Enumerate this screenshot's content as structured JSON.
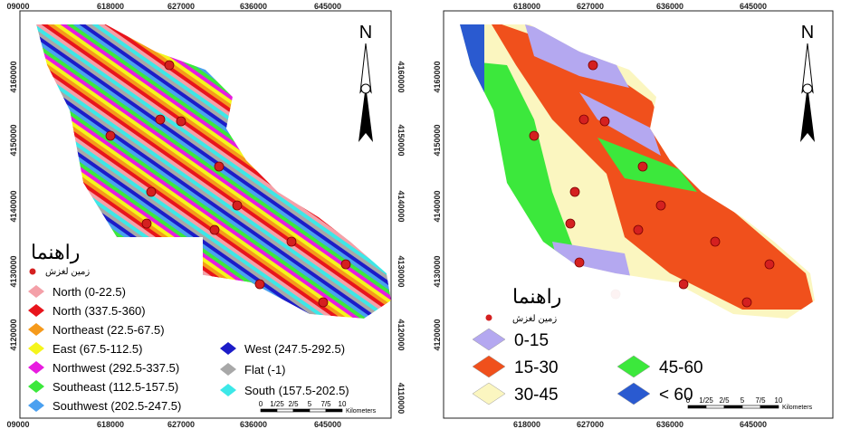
{
  "left_map": {
    "top_labels": [
      "09000",
      "618000",
      "627000",
      "636000",
      "645000"
    ],
    "left_labels": [
      "4160000",
      "4150000",
      "4140000",
      "4130000",
      "4120000"
    ],
    "right_labels": [
      "4160000",
      "4150000",
      "4140000",
      "4130000",
      "4120000",
      "4110000"
    ],
    "bottom_labels": [
      "09000",
      "618000",
      "627000",
      "636000",
      "645000"
    ],
    "north": "N",
    "legend": {
      "title": "راهنما",
      "point_label": "زمین لغزش",
      "point_color": "#d42020",
      "items": [
        {
          "label": "North (0-22.5)",
          "color": "#f4a0a8"
        },
        {
          "label": "North (337.5-360)",
          "color": "#e8141c"
        },
        {
          "label": "Northeast (22.5-67.5)",
          "color": "#f59a1c"
        },
        {
          "label": "East (67.5-112.5)",
          "color": "#f5f51c"
        },
        {
          "label": "Northwest (292.5-337.5)",
          "color": "#e81ce0"
        },
        {
          "label": "Southeast (112.5-157.5)",
          "color": "#3ce83c"
        },
        {
          "label": "Southwest (202.5-247.5)",
          "color": "#4aa0f0"
        },
        {
          "label": "West (247.5-292.5)",
          "color": "#1c1cc8"
        },
        {
          "label": "Flat (-1)",
          "color": "#a8a8a8"
        },
        {
          "label": "South (157.5-202.5)",
          "color": "#3ce8e8"
        }
      ]
    },
    "scale": {
      "ticks": [
        "0",
        "1/25",
        "2/5",
        "5",
        "7/5",
        "10"
      ],
      "unit": "Kilometers"
    }
  },
  "right_map": {
    "top_labels": [
      "618000",
      "627000",
      "636000",
      "645000"
    ],
    "left_labels": [
      "4160000",
      "4150000",
      "4140000",
      "4130000",
      "4120000"
    ],
    "bottom_labels": [
      "618000",
      "627000",
      "636000",
      "645000"
    ],
    "north": "N",
    "legend": {
      "title": "راهنما",
      "point_label": "زمین لغزش",
      "point_color": "#d42020",
      "items": [
        {
          "label": "0-15",
          "color": "#b4a8f0"
        },
        {
          "label": "15-30",
          "color": "#f0501c"
        },
        {
          "label": "30-45",
          "color": "#fbf6c0"
        },
        {
          "label": "45-60",
          "color": "#3ce83c"
        },
        {
          "label": "< 60",
          "color": "#2a5ad0"
        }
      ]
    },
    "scale": {
      "ticks": [
        "0",
        "1/25",
        "2/5",
        "5",
        "7/5",
        "10"
      ],
      "unit": "Kilometers"
    }
  }
}
